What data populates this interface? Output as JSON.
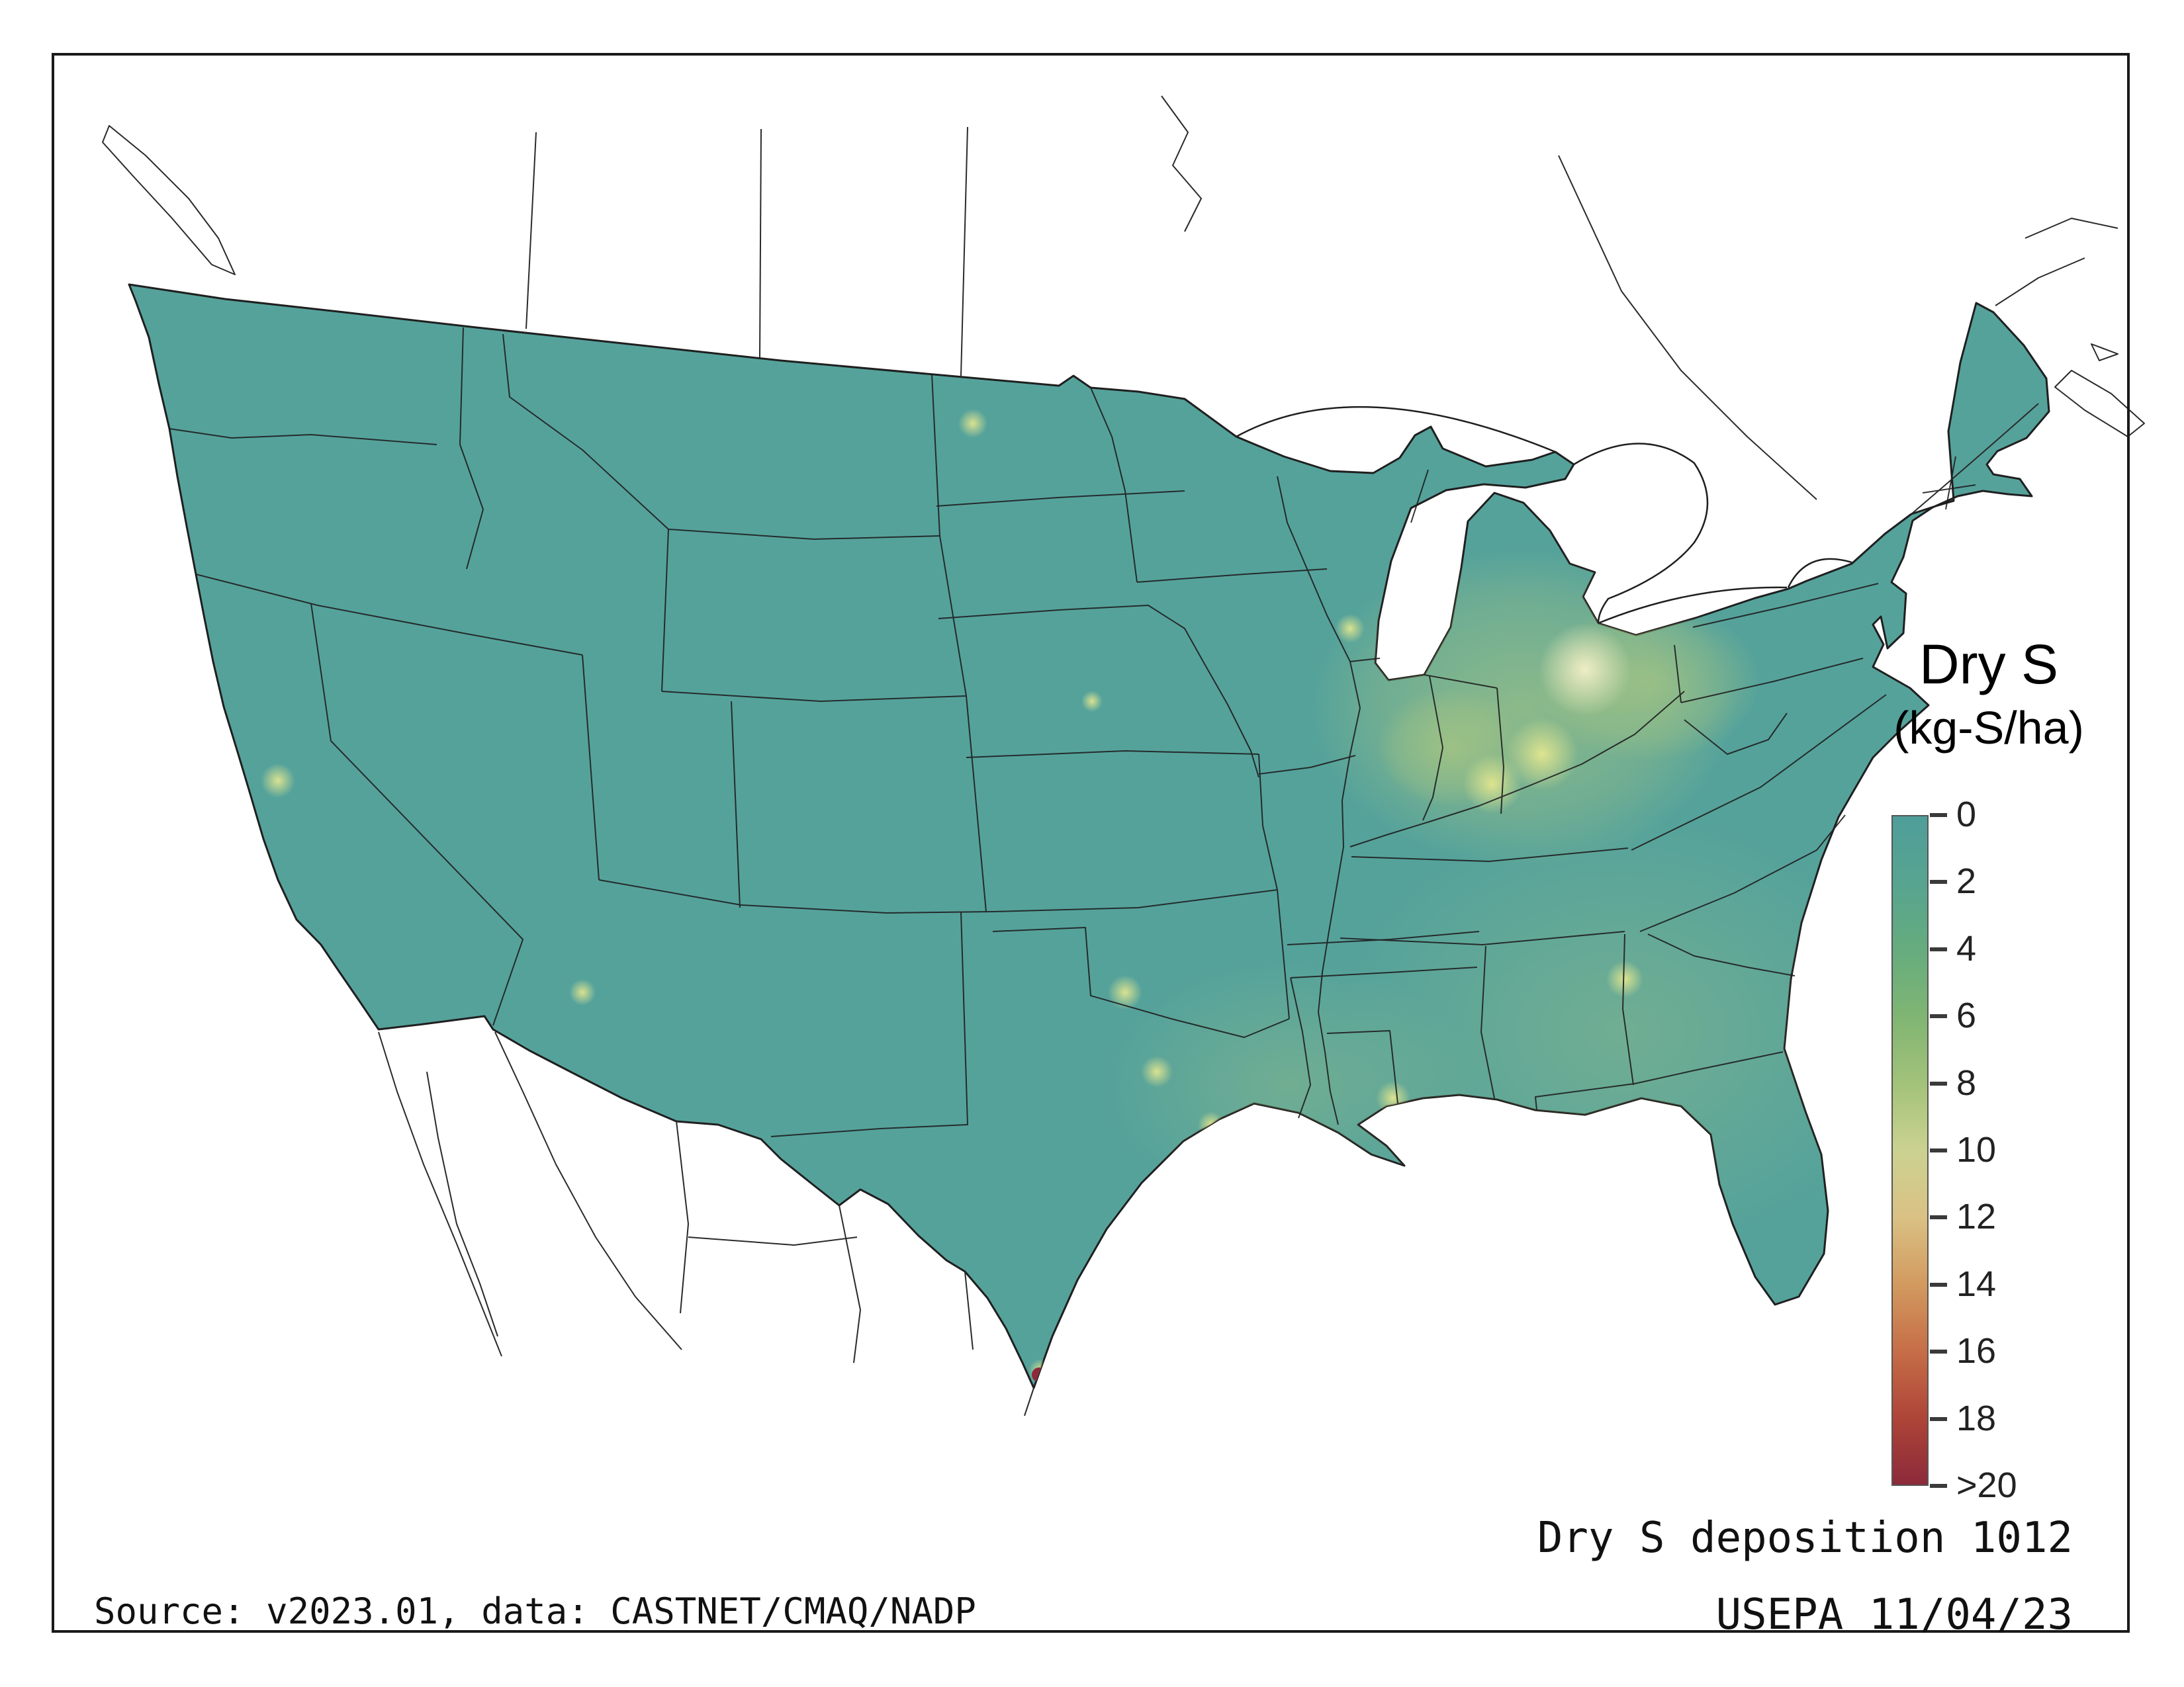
{
  "window": {
    "background": "#ffffff",
    "frame_color": "#1a1a1a"
  },
  "legend": {
    "title_line1": "Dry S",
    "title_line2": "(kg-S/ha)",
    "unit_ticks": [
      "0",
      "2",
      "4",
      "6",
      "8",
      "10",
      "12",
      "14",
      "16",
      "18",
      ">20"
    ],
    "gradient_stops": [
      "#4F9E9A",
      "#57A490",
      "#66AC7E",
      "#80B573",
      "#A2C27A",
      "#CBD291",
      "#DAC184",
      "#D29A5F",
      "#C66E48",
      "#AE4538",
      "#8C2A3A"
    ]
  },
  "captions": {
    "source": "Source: v2023.01, data: CASTNET/CMAQ/NADP",
    "title": "Dry S deposition 1012",
    "agency_date": "USEPA 11/04/23"
  },
  "map": {
    "name": "CONUS dry sulfur deposition grid",
    "base_color": "#55A29B",
    "hotspot_color": "#B9CD7C",
    "bright_spot_color": "#E8E98F",
    "peak_color": "#F4F0C8",
    "extreme_color": "#8C2A3A",
    "border_color": "#1f1f1f",
    "neighbor_line_color": "#2a2a2a"
  }
}
